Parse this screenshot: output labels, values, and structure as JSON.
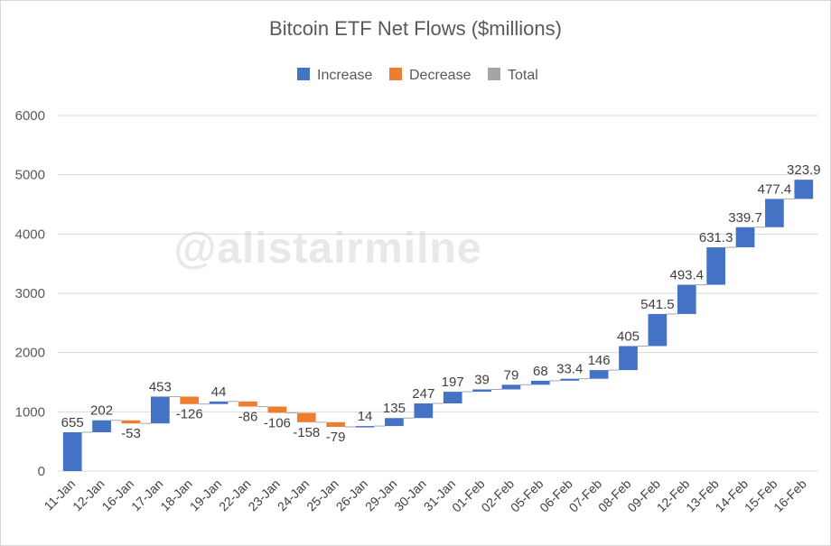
{
  "chart_data": {
    "type": "bar",
    "subtype": "waterfall",
    "title": "Bitcoin ETF Net Flows ($millions)",
    "watermark": "@alistairmilne",
    "legend": [
      {
        "name": "Increase",
        "color": "#4472c4"
      },
      {
        "name": "Decrease",
        "color": "#ed7d31"
      },
      {
        "name": "Total",
        "color": "#a5a5a5"
      }
    ],
    "ylim": [
      0,
      6000
    ],
    "yticks": [
      0,
      1000,
      2000,
      3000,
      4000,
      5000,
      6000
    ],
    "grid": true,
    "categories": [
      "11-Jan",
      "12-Jan",
      "16-Jan",
      "17-Jan",
      "18-Jan",
      "19-Jan",
      "22-Jan",
      "23-Jan",
      "24-Jan",
      "25-Jan",
      "26-Jan",
      "29-Jan",
      "30-Jan",
      "31-Jan",
      "01-Feb",
      "02-Feb",
      "05-Feb",
      "06-Feb",
      "07-Feb",
      "08-Feb",
      "09-Feb",
      "12-Feb",
      "13-Feb",
      "14-Feb",
      "15-Feb",
      "16-Feb"
    ],
    "values": [
      655,
      202,
      -53,
      453,
      -126,
      44,
      -86,
      -106,
      -158,
      -79,
      14,
      135,
      247,
      197,
      39,
      79,
      68,
      33.4,
      146,
      405,
      541.5,
      493.4,
      631.3,
      339.7,
      477.4,
      323.9
    ],
    "labels": [
      "655",
      "202",
      "-53",
      "453",
      "-126",
      "44",
      "-86",
      "-106",
      "-158",
      "-79",
      "14",
      "135",
      "247",
      "197",
      "39",
      "79",
      "68",
      "33.4",
      "146",
      "405",
      "541.5",
      "493.4",
      "631.3",
      "339.7",
      "477.4",
      "323.9"
    ]
  }
}
